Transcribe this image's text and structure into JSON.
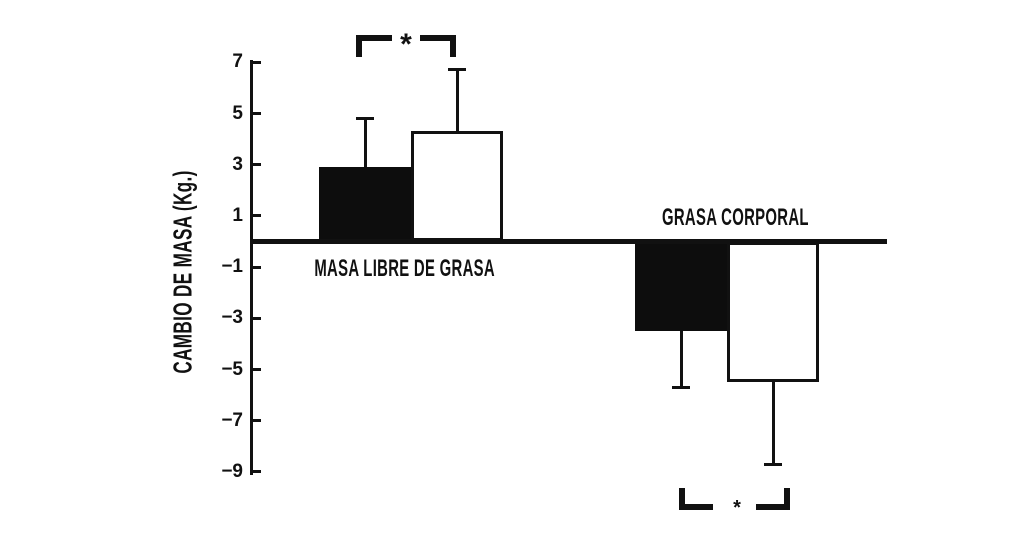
{
  "figure": {
    "background": "#ffffff",
    "ink_color": "#111111"
  },
  "chart_data": {
    "type": "bar",
    "title": "",
    "xlabel": "",
    "ylabel": "CAMBIO DE MASA (Kg.)",
    "categories": [
      "MASA LIBRE DE GRASA",
      "GRASA CORPORAL"
    ],
    "series": [
      {
        "name": "filled-black-bars",
        "fill": "#0d0d0d",
        "values": [
          2.9,
          -3.5
        ],
        "errors": [
          1.9,
          2.2
        ]
      },
      {
        "name": "open-white-bars",
        "fill": "#ffffff",
        "values": [
          4.3,
          -5.5
        ],
        "errors": [
          2.4,
          3.2
        ]
      }
    ],
    "yticks": [
      7,
      5,
      3,
      1,
      -1,
      -3,
      -5,
      -7,
      -9
    ],
    "ylim": [
      -9.6,
      7.2
    ],
    "grid": false,
    "legend": "none",
    "error_bars": "one-sided, extending away from zero",
    "significance": [
      {
        "location": "above MASA LIBRE DE GRASA bars",
        "symbol": "*"
      },
      {
        "location": "below GRASA CORPORAL bars",
        "symbol": "*"
      }
    ],
    "ink_color": "#111111"
  }
}
